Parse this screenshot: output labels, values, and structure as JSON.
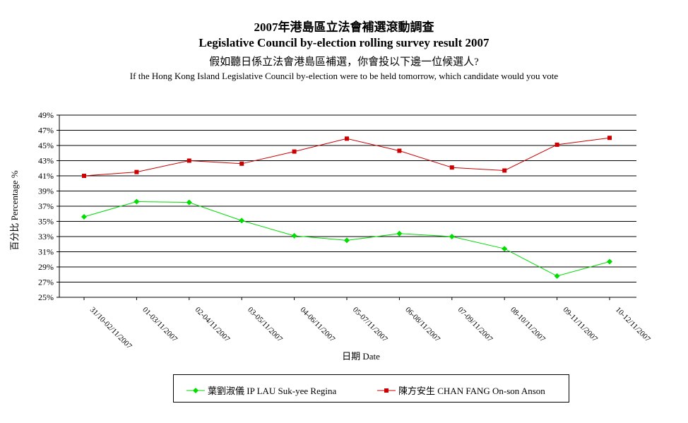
{
  "chart_data": {
    "type": "line",
    "title": "2007年港島區立法會補選滾動調查",
    "title_en": "Legislative Council by-election rolling survey result 2007",
    "subtitle": "假如聽日係立法會港島區補選，你會投以下邊一位候選人?",
    "subtitle_en": "If the Hong Kong Island Legislative Council by-election were to be held tomorrow, which candidate would you vote",
    "xlabel": "日期 Date",
    "ylabel": "百分比 Percentage %",
    "categories": [
      "31/10-02/11/2007",
      "01-03/11/2007",
      "02-04/11/2007",
      "03-05/11/2007",
      "04-06/11/2007",
      "05-07/11/2007",
      "06-08/11/2007",
      "07-09/11/2007",
      "08-10/11/2007",
      "09-11/11/2007",
      "10-12/11/2007"
    ],
    "yticks": [
      "25%",
      "27%",
      "29%",
      "31%",
      "33%",
      "35%",
      "37%",
      "39%",
      "41%",
      "43%",
      "45%",
      "47%",
      "49%"
    ],
    "ylim": [
      25,
      49
    ],
    "grid": true,
    "legend_position": "bottom",
    "series": [
      {
        "name": "葉劉淑儀 IP LAU Suk-yee Regina",
        "color": "#00dd00",
        "marker": "diamond",
        "values": [
          35.6,
          37.6,
          37.5,
          35.1,
          33.1,
          32.5,
          33.4,
          33.0,
          31.4,
          27.8,
          29.7
        ]
      },
      {
        "name": "陳方安生 CHAN FANG On-son Anson",
        "color": "#cc0000",
        "marker": "square",
        "values": [
          41.0,
          41.5,
          43.0,
          42.6,
          44.2,
          45.9,
          44.3,
          42.1,
          41.7,
          45.1,
          46.0
        ]
      }
    ]
  }
}
